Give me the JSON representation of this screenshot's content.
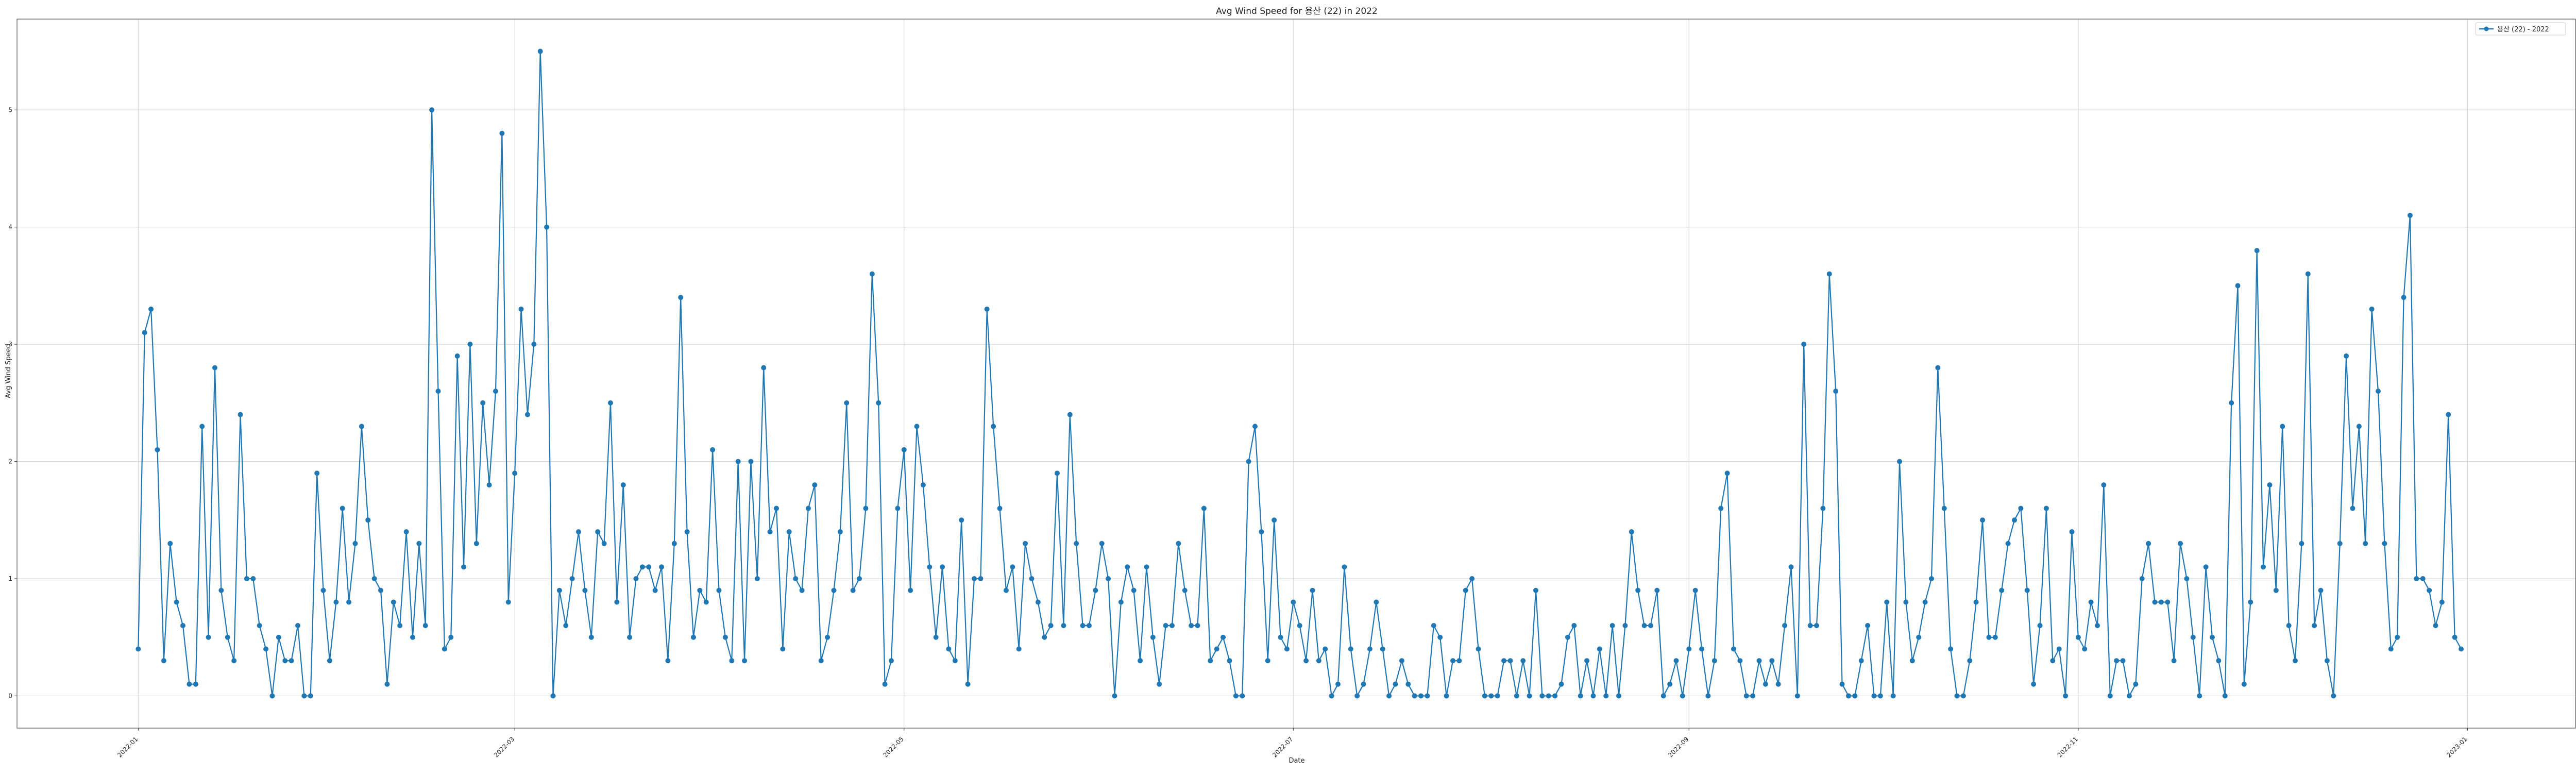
{
  "chart_data": {
    "type": "line",
    "title": "Avg Wind Speed for 용산 (22) in 2022",
    "xlabel": "Date",
    "ylabel": "Avg Wind Speed",
    "x_start": "2022-01-01",
    "x_end": "2022-12-31",
    "xlim": [
      "2021-12-13",
      "2023-01-18"
    ],
    "ylim": [
      -0.275,
      5.775
    ],
    "x_ticks": [
      "2022-01",
      "2022-03",
      "2022-05",
      "2022-07",
      "2022-09",
      "2022-11",
      "2023-01"
    ],
    "y_ticks": [
      0,
      1,
      2,
      3,
      4,
      5
    ],
    "grid": true,
    "legend_position": "top-right",
    "series": [
      {
        "name": "용산 (22) - 2022",
        "color": "#1f77b4",
        "marker": "circle",
        "values": [
          0.4,
          3.1,
          3.3,
          2.1,
          0.3,
          1.3,
          0.8,
          0.6,
          0.1,
          0.1,
          2.3,
          0.5,
          2.8,
          0.9,
          0.5,
          0.3,
          2.4,
          1.0,
          1.0,
          0.6,
          0.4,
          0.0,
          0.5,
          0.3,
          0.3,
          0.6,
          0.0,
          0.0,
          1.9,
          0.9,
          0.3,
          0.8,
          1.6,
          0.8,
          1.3,
          2.3,
          1.5,
          1.0,
          0.9,
          0.1,
          0.8,
          0.6,
          1.4,
          0.5,
          1.3,
          0.6,
          5.0,
          2.6,
          0.4,
          0.5,
          2.9,
          1.1,
          3.0,
          1.3,
          2.5,
          1.8,
          2.6,
          4.8,
          0.8,
          1.9,
          3.3,
          2.4,
          3.0,
          5.5,
          4.0,
          0.0,
          0.9,
          0.6,
          1.0,
          1.4,
          0.9,
          0.5,
          1.4,
          1.3,
          2.5,
          0.8,
          1.8,
          0.5,
          1.0,
          1.1,
          1.1,
          0.9,
          1.1,
          0.3,
          1.3,
          3.4,
          1.4,
          0.5,
          0.9,
          0.8,
          2.1,
          0.9,
          0.5,
          0.3,
          2.0,
          0.3,
          2.0,
          1.0,
          2.8,
          1.4,
          1.6,
          0.4,
          1.4,
          1.0,
          0.9,
          1.6,
          1.8,
          0.3,
          0.5,
          0.9,
          1.4,
          2.5,
          0.9,
          1.0,
          1.6,
          3.6,
          2.5,
          0.1,
          0.3,
          1.6,
          2.1,
          0.9,
          2.3,
          1.8,
          1.1,
          0.5,
          1.1,
          0.4,
          0.3,
          1.5,
          0.1,
          1.0,
          1.0,
          3.3,
          2.3,
          1.6,
          0.9,
          1.1,
          0.4,
          1.3,
          1.0,
          0.8,
          0.5,
          0.6,
          1.9,
          0.6,
          2.4,
          1.3,
          0.6,
          0.6,
          0.9,
          1.3,
          1.0,
          0.0,
          0.8,
          1.1,
          0.9,
          0.3,
          1.1,
          0.5,
          0.1,
          0.6,
          0.6,
          1.3,
          0.9,
          0.6,
          0.6,
          1.6,
          0.3,
          0.4,
          0.5,
          0.3,
          0.0,
          0.0,
          2.0,
          2.3,
          1.4,
          0.3,
          1.5,
          0.5,
          0.4,
          0.8,
          0.6,
          0.3,
          0.9,
          0.3,
          0.4,
          0.0,
          0.1,
          1.1,
          0.4,
          0.0,
          0.1,
          0.4,
          0.8,
          0.4,
          0.0,
          0.1,
          0.3,
          0.1,
          0.0,
          0.0,
          0.0,
          0.6,
          0.5,
          0.0,
          0.3,
          0.3,
          0.9,
          1.0,
          0.4,
          0.0,
          0.0,
          0.0,
          0.3,
          0.3,
          0.0,
          0.3,
          0.0,
          0.9,
          0.0,
          0.0,
          0.0,
          0.1,
          0.5,
          0.6,
          0.0,
          0.3,
          0.0,
          0.4,
          0.0,
          0.6,
          0.0,
          0.6,
          1.4,
          0.9,
          0.6,
          0.6,
          0.9,
          0.0,
          0.1,
          0.3,
          0.0,
          0.4,
          0.9,
          0.4,
          0.0,
          0.3,
          1.6,
          1.9,
          0.4,
          0.3,
          0.0,
          0.0,
          0.3,
          0.1,
          0.3,
          0.1,
          0.6,
          1.1,
          0.0,
          3.0,
          0.6,
          0.6,
          1.6,
          3.6,
          2.6,
          0.1,
          0.0,
          0.0,
          0.3,
          0.6,
          0.0,
          0.0,
          0.8,
          0.0,
          2.0,
          0.8,
          0.3,
          0.5,
          0.8,
          1.0,
          2.8,
          1.6,
          0.4,
          0.0,
          0.0,
          0.3,
          0.8,
          1.5,
          0.5,
          0.5,
          0.9,
          1.3,
          1.5,
          1.6,
          0.9,
          0.1,
          0.6,
          1.6,
          0.3,
          0.4,
          0.0,
          1.4,
          0.5,
          0.4,
          0.8,
          0.6,
          1.8,
          0.0,
          0.3,
          0.3,
          0.0,
          0.1,
          1.0,
          1.3,
          0.8,
          0.8,
          0.8,
          0.3,
          1.3,
          1.0,
          0.5,
          0.0,
          1.1,
          0.5,
          0.3,
          0.0,
          2.5,
          3.5,
          0.1,
          0.8,
          3.8,
          1.1,
          1.8,
          0.9,
          2.3,
          0.6,
          0.3,
          1.3,
          3.6,
          0.6,
          0.9,
          0.3,
          0.0,
          1.3,
          2.9,
          1.6,
          2.3,
          1.3,
          3.3,
          2.6,
          1.3,
          0.4,
          0.5,
          3.4,
          4.1,
          1.0,
          1.0,
          0.9,
          0.6,
          0.8,
          2.4,
          0.5,
          0.4
        ]
      }
    ]
  }
}
